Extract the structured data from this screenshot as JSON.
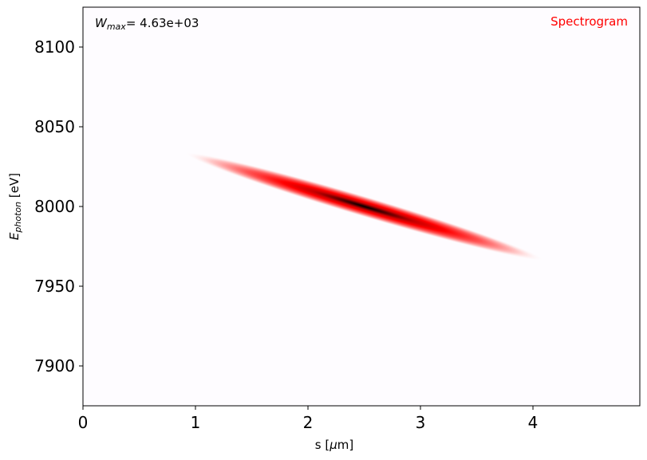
{
  "chart_data": {
    "type": "heatmap",
    "title": "Spectrogram",
    "title_color": "#ff0000",
    "annotation": {
      "label_main": "W",
      "label_sub": "max",
      "label_value": "= 4.63e+03"
    },
    "xlabel": {
      "main": "s [",
      "greek": "μ",
      "rest": "m]"
    },
    "ylabel": {
      "main": "E",
      "sub": "photon",
      "rest": " [eV]"
    },
    "xlim": [
      0,
      4.95
    ],
    "ylim": [
      7875,
      8125
    ],
    "xticks": [
      0,
      1,
      2,
      3,
      4
    ],
    "xtick_labels": [
      "0",
      "1",
      "2",
      "3",
      "4"
    ],
    "yticks": [
      7900,
      7950,
      8000,
      8050,
      8100
    ],
    "ytick_labels": [
      "7900",
      "7950",
      "8000",
      "8050",
      "8100"
    ],
    "grid": false,
    "colormap": [
      "#ffffff",
      "#ff0000",
      "#000000"
    ],
    "background_color": "#fefcff",
    "blob": {
      "center_s": 2.5,
      "center_e": 8000,
      "s_start": 0.9,
      "e_start": 8034,
      "s_end": 4.1,
      "e_end": 7967,
      "peak_value": 4630
    }
  }
}
